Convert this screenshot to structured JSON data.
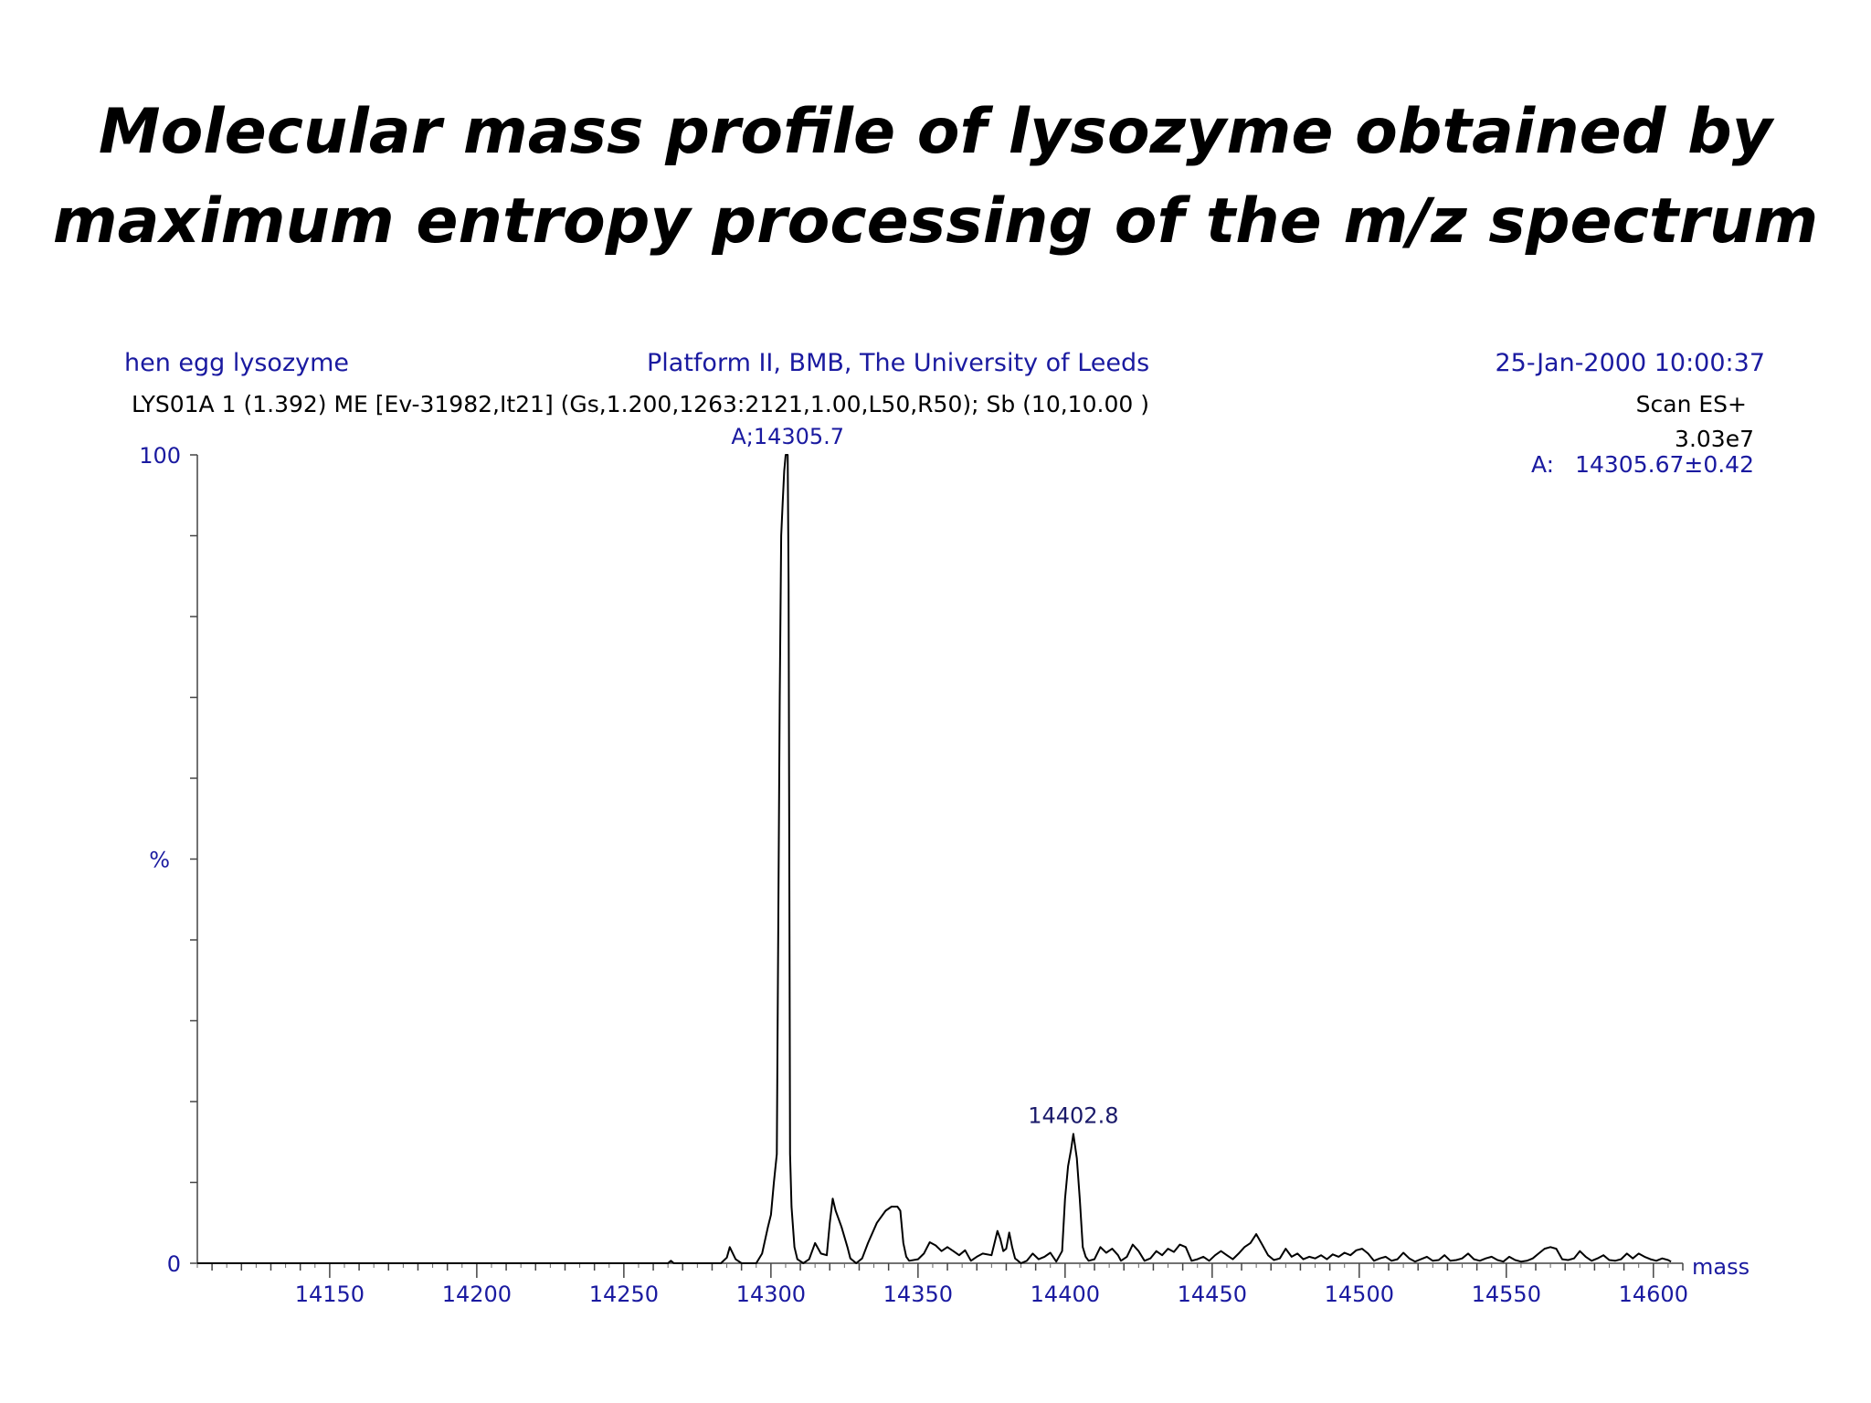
{
  "title_line1": "Molecular mass profile of lysozyme obtained by",
  "title_line2": "maximum entropy processing of the m/z spectrum",
  "header": {
    "sample": "hen egg lysozyme",
    "instrument": "Platform II, BMB, The University of Leeds",
    "datetime": "25-Jan-2000 10:00:37",
    "run_info": "LYS01A 1 (1.392) ME [Ev-31982,It21] (Gs,1.200,1263:2121,1.00,L50,R50); Sb (10,10.00 )",
    "scan": "Scan ES+",
    "intensity": "3.03e7",
    "component_label": "A:",
    "component_value": "14305.67±0.42"
  },
  "colors": {
    "axis_text": "#1a1aa0",
    "trace": "#000000"
  },
  "chart_data": {
    "type": "line",
    "xlabel": "mass",
    "ylabel": "%",
    "xlim": [
      14105,
      14610
    ],
    "ylim": [
      0,
      100
    ],
    "x_ticks": [
      14150,
      14200,
      14250,
      14300,
      14350,
      14400,
      14450,
      14500,
      14550,
      14600
    ],
    "y_ticks": [
      0,
      100
    ],
    "peak_labels": [
      {
        "label": "A;14305.7",
        "x": 14305.7,
        "y": 100
      },
      {
        "label": "14402.8",
        "x": 14402.8,
        "y": 16
      }
    ],
    "series": [
      {
        "values": [
          [
            14105,
            0
          ],
          [
            14265,
            0
          ],
          [
            14266,
            0.3
          ],
          [
            14267,
            0
          ],
          [
            14283,
            0
          ],
          [
            14285,
            0.7
          ],
          [
            14286,
            2
          ],
          [
            14288,
            0.5
          ],
          [
            14290,
            0
          ],
          [
            14295,
            0
          ],
          [
            14297,
            1.2
          ],
          [
            14299,
            4.5
          ],
          [
            14300,
            6
          ],
          [
            14301,
            10
          ],
          [
            14302,
            13.5
          ],
          [
            14303,
            70
          ],
          [
            14303.5,
            90
          ],
          [
            14304,
            94
          ],
          [
            14304.5,
            98
          ],
          [
            14305,
            100
          ],
          [
            14305.7,
            100
          ],
          [
            14306,
            84
          ],
          [
            14306.5,
            13.5
          ],
          [
            14307,
            7
          ],
          [
            14308,
            2
          ],
          [
            14309,
            0.5
          ],
          [
            14311,
            0
          ],
          [
            14313,
            0.5
          ],
          [
            14315,
            2.5
          ],
          [
            14317,
            1.2
          ],
          [
            14319,
            1
          ],
          [
            14320,
            5
          ],
          [
            14321,
            8
          ],
          [
            14322,
            6.5
          ],
          [
            14324,
            4.5
          ],
          [
            14326,
            2
          ],
          [
            14327,
            0.6
          ],
          [
            14329,
            0
          ],
          [
            14331,
            0.6
          ],
          [
            14333,
            2.5
          ],
          [
            14336,
            5
          ],
          [
            14339,
            6.5
          ],
          [
            14341,
            7
          ],
          [
            14343,
            7
          ],
          [
            14344,
            6.5
          ],
          [
            14345,
            2.5
          ],
          [
            14346,
            0.8
          ],
          [
            14347,
            0.3
          ],
          [
            14350,
            0.5
          ],
          [
            14352,
            1.2
          ],
          [
            14354,
            2.6
          ],
          [
            14356,
            2.2
          ],
          [
            14358,
            1.5
          ],
          [
            14360,
            2
          ],
          [
            14362,
            1.5
          ],
          [
            14364,
            1
          ],
          [
            14366,
            1.6
          ],
          [
            14368,
            0.3
          ],
          [
            14370,
            0.8
          ],
          [
            14372,
            1.2
          ],
          [
            14375,
            1
          ],
          [
            14376,
            2.5
          ],
          [
            14377,
            4
          ],
          [
            14378,
            3
          ],
          [
            14379,
            1.5
          ],
          [
            14380,
            1.8
          ],
          [
            14381,
            3.8
          ],
          [
            14382,
            2
          ],
          [
            14383,
            0.6
          ],
          [
            14385,
            0
          ],
          [
            14387,
            0.3
          ],
          [
            14389,
            1.2
          ],
          [
            14391,
            0.5
          ],
          [
            14393,
            0.8
          ],
          [
            14395,
            1.3
          ],
          [
            14397,
            0.2
          ],
          [
            14399,
            1.5
          ],
          [
            14400,
            8
          ],
          [
            14401,
            12
          ],
          [
            14402,
            14
          ],
          [
            14402.8,
            16
          ],
          [
            14403,
            15.5
          ],
          [
            14404,
            13
          ],
          [
            14405,
            8
          ],
          [
            14406,
            2
          ],
          [
            14407,
            0.8
          ],
          [
            14408,
            0.3
          ],
          [
            14410,
            0.5
          ],
          [
            14412,
            2
          ],
          [
            14414,
            1.3
          ],
          [
            14416,
            1.8
          ],
          [
            14418,
            1
          ],
          [
            14419,
            0.3
          ],
          [
            14421,
            0.8
          ],
          [
            14423,
            2.3
          ],
          [
            14425,
            1.5
          ],
          [
            14427,
            0.3
          ],
          [
            14429,
            0.6
          ],
          [
            14431,
            1.5
          ],
          [
            14433,
            1
          ],
          [
            14435,
            1.8
          ],
          [
            14437,
            1.4
          ],
          [
            14439,
            2.3
          ],
          [
            14441,
            2
          ],
          [
            14443,
            0.3
          ],
          [
            14445,
            0.5
          ],
          [
            14447,
            0.8
          ],
          [
            14449,
            0.3
          ],
          [
            14451,
            1
          ],
          [
            14453,
            1.5
          ],
          [
            14455,
            1
          ],
          [
            14457,
            0.5
          ],
          [
            14459,
            1.2
          ],
          [
            14461,
            2
          ],
          [
            14463,
            2.5
          ],
          [
            14465,
            3.6
          ],
          [
            14467,
            2.3
          ],
          [
            14469,
            1
          ],
          [
            14471,
            0.4
          ],
          [
            14473,
            0.6
          ],
          [
            14475,
            1.8
          ],
          [
            14477,
            0.8
          ],
          [
            14479,
            1.2
          ],
          [
            14481,
            0.5
          ],
          [
            14483,
            0.8
          ],
          [
            14485,
            0.6
          ],
          [
            14487,
            1
          ],
          [
            14489,
            0.5
          ],
          [
            14491,
            1.1
          ],
          [
            14493,
            0.8
          ],
          [
            14495,
            1.3
          ],
          [
            14497,
            1
          ],
          [
            14499,
            1.6
          ],
          [
            14501,
            1.8
          ],
          [
            14503,
            1.2
          ],
          [
            14505,
            0.3
          ],
          [
            14507,
            0.6
          ],
          [
            14509,
            0.8
          ],
          [
            14511,
            0.3
          ],
          [
            14513,
            0.5
          ],
          [
            14515,
            1.3
          ],
          [
            14517,
            0.6
          ],
          [
            14519,
            0.2
          ],
          [
            14521,
            0.5
          ],
          [
            14523,
            0.8
          ],
          [
            14525,
            0.3
          ],
          [
            14527,
            0.4
          ],
          [
            14529,
            1
          ],
          [
            14531,
            0.3
          ],
          [
            14533,
            0.4
          ],
          [
            14535,
            0.6
          ],
          [
            14537,
            1.2
          ],
          [
            14539,
            0.5
          ],
          [
            14541,
            0.3
          ],
          [
            14543,
            0.6
          ],
          [
            14545,
            0.8
          ],
          [
            14547,
            0.4
          ],
          [
            14549,
            0.2
          ],
          [
            14551,
            0.8
          ],
          [
            14553,
            0.4
          ],
          [
            14555,
            0.2
          ],
          [
            14557,
            0.3
          ],
          [
            14559,
            0.6
          ],
          [
            14561,
            1.2
          ],
          [
            14563,
            1.8
          ],
          [
            14565,
            2
          ],
          [
            14567,
            1.8
          ],
          [
            14569,
            0.5
          ],
          [
            14571,
            0.4
          ],
          [
            14573,
            0.6
          ],
          [
            14575,
            1.5
          ],
          [
            14577,
            0.8
          ],
          [
            14579,
            0.3
          ],
          [
            14581,
            0.6
          ],
          [
            14583,
            1
          ],
          [
            14585,
            0.4
          ],
          [
            14587,
            0.3
          ],
          [
            14589,
            0.5
          ],
          [
            14591,
            1.2
          ],
          [
            14593,
            0.6
          ],
          [
            14595,
            1.2
          ],
          [
            14597,
            0.8
          ],
          [
            14599,
            0.5
          ],
          [
            14601,
            0.3
          ],
          [
            14603,
            0.6
          ],
          [
            14605,
            0.4
          ],
          [
            14606,
            0.2
          ]
        ]
      }
    ]
  }
}
